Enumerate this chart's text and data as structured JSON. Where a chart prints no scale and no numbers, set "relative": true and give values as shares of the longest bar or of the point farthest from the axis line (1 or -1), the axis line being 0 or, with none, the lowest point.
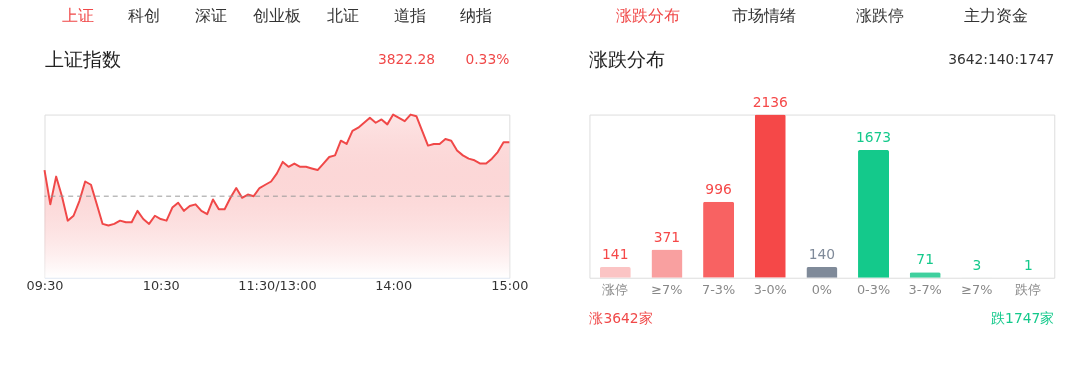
{
  "chart_data": [
    {
      "type": "area",
      "title": "上证指数",
      "relative": true,
      "grid": false,
      "annotations": [
        "上证",
        "科创",
        "深证",
        "创业板",
        "北证",
        "道指",
        "纳指",
        "3822.28",
        "0.33%"
      ],
      "categories": [
        "09:30",
        null,
        null,
        null,
        null,
        null,
        null,
        null,
        null,
        null,
        null,
        null,
        null,
        null,
        null,
        null,
        null,
        null,
        null,
        null,
        "10:30",
        null,
        null,
        null,
        null,
        null,
        null,
        null,
        null,
        null,
        null,
        null,
        null,
        null,
        null,
        null,
        null,
        null,
        null,
        null,
        "11:30/13:00",
        null,
        null,
        null,
        null,
        null,
        null,
        null,
        null,
        null,
        null,
        null,
        null,
        null,
        null,
        null,
        null,
        null,
        null,
        null,
        "14:00",
        null,
        null,
        null,
        null,
        null,
        null,
        null,
        null,
        null,
        null,
        null,
        null,
        null,
        null,
        null,
        null,
        null,
        null,
        null,
        "15:00"
      ],
      "ref_lines": [
        {
          "axis": "y",
          "value": 0.5,
          "label": null,
          "color": "#999999",
          "line_style": "dashed"
        }
      ],
      "series": [
        {
          "color": "#f04848",
          "values": [
            0.66,
            0.45,
            0.62,
            0.5,
            0.35,
            0.38,
            0.47,
            0.59,
            0.57,
            0.45,
            0.33,
            0.32,
            0.33,
            0.35,
            0.34,
            0.34,
            0.41,
            0.36,
            0.33,
            0.38,
            0.36,
            0.35,
            0.43,
            0.46,
            0.41,
            0.44,
            0.45,
            0.41,
            0.39,
            0.48,
            0.42,
            0.42,
            0.49,
            0.55,
            0.49,
            0.51,
            0.5,
            0.55,
            0.57,
            0.59,
            0.64,
            0.71,
            0.68,
            0.7,
            0.68,
            0.68,
            0.67,
            0.66,
            0.7,
            0.74,
            0.75,
            0.84,
            0.82,
            0.9,
            0.92,
            0.95,
            0.98,
            0.95,
            0.97,
            0.94,
            1.0,
            0.98,
            0.96,
            1.0,
            0.99,
            0.9,
            0.81,
            0.82,
            0.82,
            0.85,
            0.84,
            0.78,
            0.75,
            0.73,
            0.72,
            0.7,
            0.7,
            0.73,
            0.77,
            0.83,
            0.83
          ]
        }
      ]
    },
    {
      "type": "bar",
      "title": "涨跌分布",
      "data_labels": true,
      "grid": false,
      "annotations": [
        "涨跌分布",
        "市场情绪",
        "涨跌停",
        "主力资金",
        "3642:140:1747",
        "涨3642家",
        "跌1747家"
      ],
      "categories": [
        "涨停",
        "≥7%",
        "7-3%",
        "3-0%",
        "0%",
        "0-3%",
        "3-7%",
        "≥7%",
        "跌停"
      ],
      "values": [
        141,
        371,
        996,
        2136,
        140,
        1673,
        71,
        3,
        1
      ],
      "colors": [
        "#fbc4c4",
        "#f9a0a0",
        "#f86262",
        "#f54848",
        "#7f8a99",
        "#14c98b",
        "#3fd09e",
        "#8fe3c4",
        "#b8eedb"
      ]
    }
  ]
}
